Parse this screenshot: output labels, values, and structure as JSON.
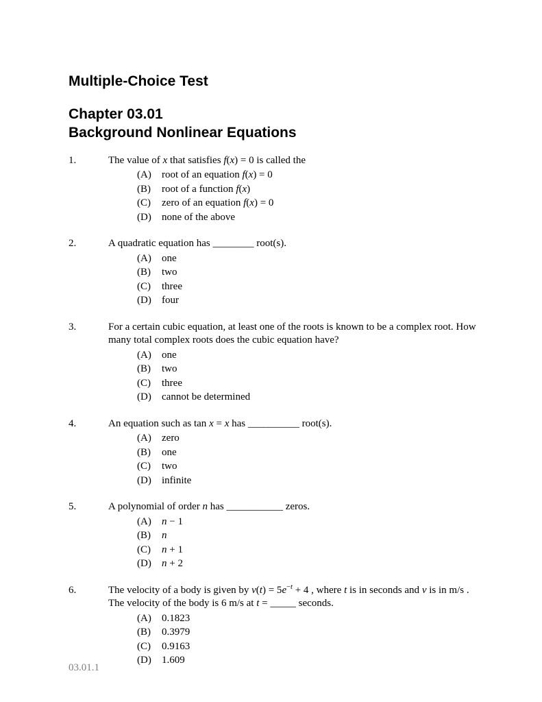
{
  "title1": "Multiple-Choice Test",
  "title2_line1": "Chapter 03.01",
  "title2_line2": "Background Nonlinear Equations",
  "footer": "03.01.1",
  "questions": [
    {
      "num": "1.",
      "text_html": "The value of <span class='ital'>x</span> that satisfies <span class='ital'>f</span>(<span class='ital'>x</span>) = 0 is called the",
      "choices": [
        {
          "label": "(A)",
          "text_html": "root of an equation <span class='ital'>f</span>(<span class='ital'>x</span>) = 0"
        },
        {
          "label": "(B)",
          "text_html": "root of a function <span class='ital'>f</span>(<span class='ital'>x</span>)"
        },
        {
          "label": "(C)",
          "text_html": "zero of an equation <span class='ital'>f</span>(<span class='ital'>x</span>) = 0"
        },
        {
          "label": "(D)",
          "text_html": "none of the above"
        }
      ]
    },
    {
      "num": "2.",
      "text_html": "A quadratic equation has ________ root(s).",
      "choices": [
        {
          "label": "(A)",
          "text_html": "one"
        },
        {
          "label": "(B)",
          "text_html": "two"
        },
        {
          "label": "(C)",
          "text_html": "three"
        },
        {
          "label": "(D)",
          "text_html": "four"
        }
      ]
    },
    {
      "num": "3.",
      "text_html": "For a certain cubic equation, at least one of the roots is known to be a complex root.  How many total complex roots does the cubic equation have?",
      "choices": [
        {
          "label": "(A)",
          "text_html": "one"
        },
        {
          "label": "(B)",
          "text_html": "two"
        },
        {
          "label": "(C)",
          "text_html": "three"
        },
        {
          "label": "(D)",
          "text_html": "cannot be determined"
        }
      ]
    },
    {
      "num": "4.",
      "text_html": "An equation such as  tan <span class='ital'>x</span> = <span class='ital'>x</span>  has __________ root(s).",
      "choices": [
        {
          "label": "(A)",
          "text_html": "zero"
        },
        {
          "label": "(B)",
          "text_html": "one"
        },
        {
          "label": "(C)",
          "text_html": "two"
        },
        {
          "label": "(D)",
          "text_html": "infinite"
        }
      ]
    },
    {
      "num": "5.",
      "text_html": "A polynomial of order <span class='ital'>n</span> has ___________ zeros.",
      "choices": [
        {
          "label": "(A)",
          "text_html": "<span class='ital'>n</span> − 1"
        },
        {
          "label": "(B)",
          "text_html": "<span class='ital'>n</span>"
        },
        {
          "label": "(C)",
          "text_html": "<span class='ital'>n</span> + 1"
        },
        {
          "label": "(D)",
          "text_html": "<span class='ital'>n</span> + 2"
        }
      ]
    },
    {
      "num": "6.",
      "text_html": "The velocity of a body is given by <span class='ital'>v</span>(<span class='ital'>t</span>) = 5<span class='ital'>e</span><sup>−<span class='ital'>t</span></sup> + 4 , where <span class='ital'>t</span> is in seconds and <span class='ital'>v</span> is in m/s .  The velocity of the body is 6  m/s  at  <span class='ital'>t</span>  = _____ seconds.",
      "choices": [
        {
          "label": "(A)",
          "text_html": "0.1823"
        },
        {
          "label": "(B)",
          "text_html": "0.3979"
        },
        {
          "label": "(C)",
          "text_html": "0.9163"
        },
        {
          "label": "(D)",
          "text_html": "1.609"
        }
      ]
    }
  ]
}
